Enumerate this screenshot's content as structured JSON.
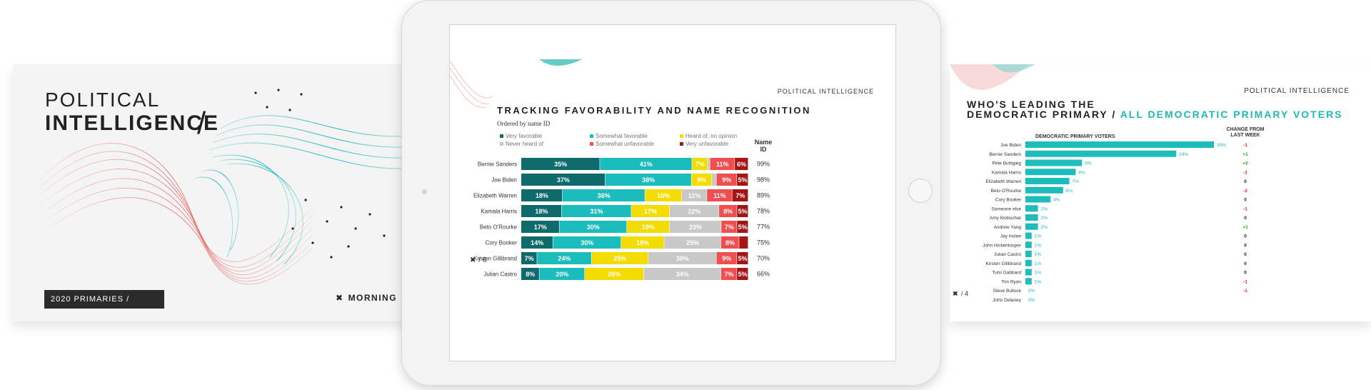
{
  "left_slide": {
    "title_line1": "POLITICAL",
    "title_line2": "INTELLIGENCE",
    "slash": "/",
    "tag": "2020 PRIMARIES /",
    "logo_text": "MORNING"
  },
  "center_slide": {
    "header": "POLITICAL INTELLIGENCE",
    "page": "/ 6",
    "chart_data": {
      "type": "bar",
      "title": "TRACKING FAVORABILITY AND NAME RECOGNITION",
      "subtitle": "Ordered by name ID",
      "orientation": "horizontal",
      "stacked": true,
      "legend_position": "top",
      "name_id_header": "Name ID",
      "categories": [
        "Bernie Sanders",
        "Joe Biden",
        "Elizabeth Warren",
        "Kamala Harris",
        "Beto O'Rourke",
        "Cory Booker",
        "Kirsten Gillibrand",
        "Julian Castro"
      ],
      "series": [
        {
          "name": "Very favorable",
          "color": "#0f6b6b",
          "values": [
            35,
            37,
            18,
            18,
            17,
            14,
            7,
            8
          ]
        },
        {
          "name": "Somewhat favorable",
          "color": "#1bbcbc",
          "values": [
            41,
            38,
            36,
            31,
            30,
            30,
            24,
            20
          ]
        },
        {
          "name": "Heard of, no opinion",
          "color": "#f5dc00",
          "values": [
            7,
            9,
            16,
            17,
            19,
            19,
            25,
            26
          ]
        },
        {
          "name": "Never heard of",
          "color": "#c8c8c8",
          "values": [
            1,
            2,
            11,
            22,
            23,
            25,
            30,
            34
          ]
        },
        {
          "name": "Somewhat unfavorable",
          "color": "#ef4f4f",
          "values": [
            11,
            9,
            11,
            8,
            7,
            8,
            9,
            7
          ]
        },
        {
          "name": "Very unfavorable",
          "color": "#a31515",
          "values": [
            6,
            5,
            7,
            5,
            5,
            4,
            5,
            5
          ]
        }
      ],
      "name_id": [
        "99%",
        "98%",
        "89%",
        "78%",
        "77%",
        "75%",
        "70%",
        "66%"
      ]
    }
  },
  "right_slide": {
    "header": "POLITICAL INTELLIGENCE",
    "title_line1": "WHO'S LEADING THE",
    "title_line2_main": "DEMOCRATIC PRIMARY /",
    "title_line2_accent": "ALL DEMOCRATIC PRIMARY VOTERS",
    "page": "/ 4",
    "chart_data": {
      "type": "bar",
      "orientation": "horizontal",
      "series_label": "DEMOCRATIC PRIMARY VOTERS",
      "change_header_line1": "CHANGE FROM",
      "change_header_line2": "LAST WEEK",
      "color": "#1fbcbc",
      "categories": [
        "Joe Biden",
        "Bernie Sanders",
        "Pete Buttigieg",
        "Kamala Harris",
        "Elizabeth Warren",
        "Beto O'Rourke",
        "Cory Booker",
        "Someone else",
        "Amy Klobuchar",
        "Andrew Yang",
        "Jay Inslee",
        "John Hickenlooper",
        "Julian Castro",
        "Kirsten Gillibrand",
        "Tulsi Gabbard",
        "Tim Ryan",
        "Steve Bullock",
        "John Delaney"
      ],
      "values": [
        30,
        24,
        9,
        8,
        7,
        6,
        4,
        2,
        2,
        2,
        1,
        1,
        1,
        1,
        1,
        1,
        0,
        0
      ],
      "value_labels": [
        "30%",
        "24%",
        "9%",
        "8%",
        "7%",
        "6%",
        "4%",
        "2%",
        "2%",
        "2%",
        "1%",
        "1%",
        "1%",
        "1%",
        "1%",
        "1%",
        "0%",
        "0%"
      ],
      "changes": [
        "-1",
        "+1",
        "+2",
        "-1",
        "0",
        "-2",
        "0",
        "-1",
        "0",
        "+1",
        "0",
        "0",
        "0",
        "0",
        "0",
        "-1",
        "-1",
        ""
      ],
      "xlim": [
        0,
        30
      ]
    }
  }
}
